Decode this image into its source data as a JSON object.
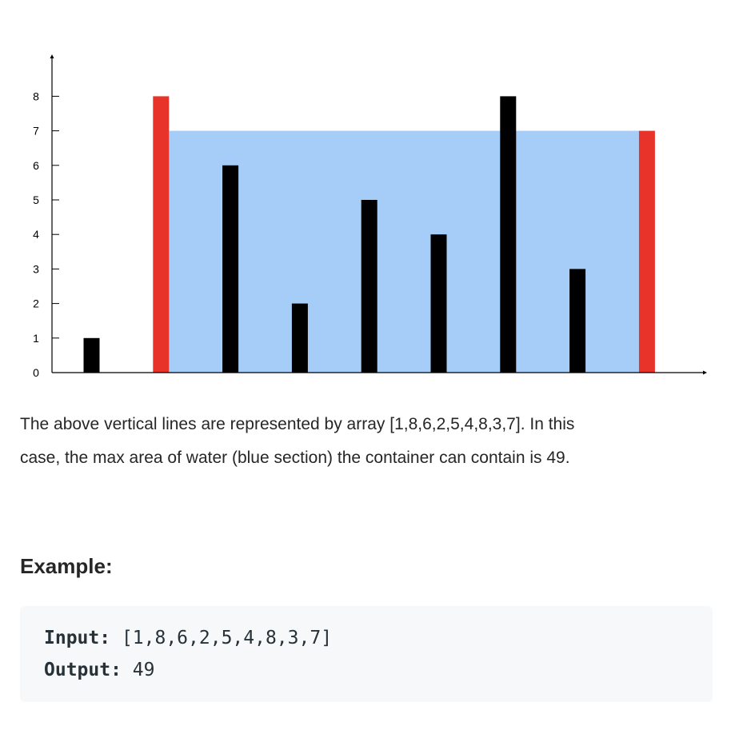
{
  "chart_data": {
    "type": "bar",
    "x": [
      1,
      2,
      3,
      4,
      5,
      6,
      7,
      8,
      9
    ],
    "values": [
      1,
      8,
      6,
      2,
      5,
      4,
      8,
      3,
      7
    ],
    "highlight_indices": [
      1,
      8
    ],
    "water_level": 7,
    "ylim": [
      0,
      8.3
    ],
    "yticks": [
      "0",
      "1",
      "2",
      "3",
      "4",
      "5",
      "6",
      "7",
      "8"
    ],
    "colors": {
      "bar": "#000000",
      "highlight": "#e8332a",
      "water": "#a5cdf8",
      "axis": "#000000"
    }
  },
  "description": {
    "line1": "The above vertical lines are represented by array [1,8,6,2,5,4,8,3,7]. In this",
    "line2": "case, the max area of water (blue section) the container can contain is 49."
  },
  "example": {
    "heading": "Example:",
    "input_label": "Input:",
    "input_value": " [1,8,6,2,5,4,8,3,7]",
    "output_label": "Output:",
    "output_value": " 49"
  }
}
